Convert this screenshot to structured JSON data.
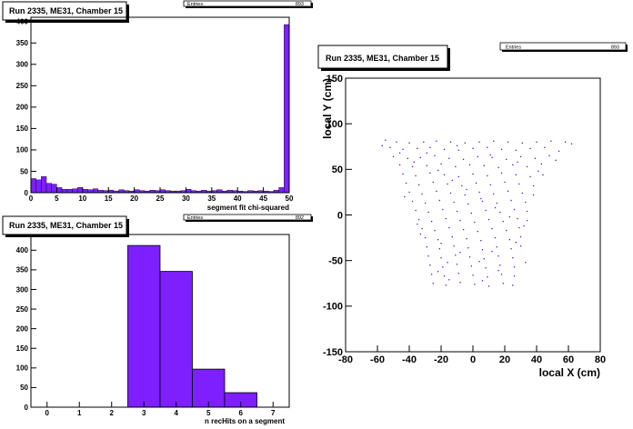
{
  "colors": {
    "fill": "#7d1fff",
    "stroke": "#000000",
    "marker": "#5a10c8"
  },
  "stats_label": "Entries",
  "chart_data": [
    {
      "type": "bar",
      "title": "Run 2335, ME31, Chamber 15",
      "entries": "893",
      "xlabel": "segment fit chi-squared",
      "ylabel": "",
      "xlim": [
        0,
        50
      ],
      "ylim": [
        0,
        410
      ],
      "xticks": [
        0,
        5,
        10,
        15,
        20,
        25,
        30,
        35,
        40,
        45,
        50
      ],
      "yticks": [
        0,
        50,
        100,
        150,
        200,
        250,
        300,
        350,
        400
      ],
      "bin_width": 1,
      "values": [
        33,
        30,
        38,
        22,
        20,
        12,
        8,
        8,
        9,
        12,
        8,
        7,
        9,
        6,
        5,
        6,
        4,
        7,
        5,
        4,
        7,
        5,
        4,
        6,
        5,
        7,
        5,
        4,
        4,
        5,
        8,
        5,
        4,
        6,
        4,
        5,
        7,
        4,
        6,
        5,
        4,
        3,
        5,
        4,
        5,
        4,
        3,
        6,
        12,
        393
      ]
    },
    {
      "type": "bar",
      "title": "Run 2335, ME31, Chamber 15",
      "entries": "892",
      "xlabel": "n recHits on a segment",
      "ylabel": "",
      "xlim": [
        -0.5,
        7.5
      ],
      "ylim": [
        0,
        440
      ],
      "xticks": [
        0,
        1,
        2,
        3,
        4,
        5,
        6,
        7
      ],
      "yticks": [
        0,
        50,
        100,
        150,
        200,
        250,
        300,
        350,
        400
      ],
      "bins": [
        {
          "x": 3,
          "value": 412
        },
        {
          "x": 4,
          "value": 346
        },
        {
          "x": 5,
          "value": 97
        },
        {
          "x": 6,
          "value": 37
        }
      ]
    },
    {
      "type": "scatter",
      "title": "Run 2335, ME31, Chamber 15",
      "entries": "893",
      "xlabel": "local X (cm)",
      "ylabel": "local Y (cm)",
      "xlim": [
        -80,
        80
      ],
      "ylim": [
        -150,
        150
      ],
      "xticks": [
        -80,
        -60,
        -40,
        -20,
        0,
        20,
        40,
        60,
        80
      ],
      "yticks": [
        -150,
        -100,
        -50,
        0,
        50,
        100,
        150
      ],
      "points": [
        [
          -55,
          82
        ],
        [
          -48,
          80
        ],
        [
          -40,
          79
        ],
        [
          -31,
          80
        ],
        [
          -23,
          81
        ],
        [
          -14,
          80
        ],
        [
          -5,
          79
        ],
        [
          4,
          80
        ],
        [
          13,
          81
        ],
        [
          22,
          80
        ],
        [
          31,
          79
        ],
        [
          40,
          80
        ],
        [
          49,
          81
        ],
        [
          58,
          80
        ],
        [
          -52,
          74
        ],
        [
          -44,
          72
        ],
        [
          -35,
          73
        ],
        [
          -27,
          74
        ],
        [
          -18,
          72
        ],
        [
          -9,
          71
        ],
        [
          0,
          73
        ],
        [
          9,
          74
        ],
        [
          18,
          72
        ],
        [
          27,
          71
        ],
        [
          36,
          73
        ],
        [
          45,
          74
        ],
        [
          54,
          70
        ],
        [
          -50,
          64
        ],
        [
          -41,
          62
        ],
        [
          -33,
          63
        ],
        [
          -24,
          65
        ],
        [
          -15,
          62
        ],
        [
          -6,
          61
        ],
        [
          3,
          64
        ],
        [
          12,
          63
        ],
        [
          21,
          61
        ],
        [
          30,
          64
        ],
        [
          39,
          62
        ],
        [
          48,
          65
        ],
        [
          -46,
          55
        ],
        [
          -38,
          53
        ],
        [
          -29,
          54
        ],
        [
          -20,
          56
        ],
        [
          -11,
          53
        ],
        [
          -2,
          55
        ],
        [
          7,
          54
        ],
        [
          16,
          52
        ],
        [
          25,
          55
        ],
        [
          34,
          53
        ],
        [
          43,
          56
        ],
        [
          -44,
          45
        ],
        [
          -36,
          43
        ],
        [
          -27,
          46
        ],
        [
          -18,
          44
        ],
        [
          -9,
          42
        ],
        [
          0,
          45
        ],
        [
          9,
          43
        ],
        [
          18,
          46
        ],
        [
          27,
          44
        ],
        [
          36,
          42
        ],
        [
          44,
          44
        ],
        [
          -42,
          35
        ],
        [
          -34,
          33
        ],
        [
          -25,
          36
        ],
        [
          -16,
          34
        ],
        [
          -7,
          32
        ],
        [
          2,
          35
        ],
        [
          11,
          33
        ],
        [
          20,
          36
        ],
        [
          29,
          34
        ],
        [
          38,
          32
        ],
        [
          -40,
          25
        ],
        [
          -32,
          23
        ],
        [
          -23,
          26
        ],
        [
          -14,
          24
        ],
        [
          -5,
          22
        ],
        [
          4,
          25
        ],
        [
          13,
          23
        ],
        [
          22,
          26
        ],
        [
          31,
          24
        ],
        [
          38,
          22
        ],
        [
          -38,
          15
        ],
        [
          -30,
          13
        ],
        [
          -21,
          16
        ],
        [
          -12,
          14
        ],
        [
          -3,
          12
        ],
        [
          6,
          15
        ],
        [
          15,
          13
        ],
        [
          24,
          16
        ],
        [
          33,
          14
        ],
        [
          -36,
          5
        ],
        [
          -28,
          3
        ],
        [
          -19,
          6
        ],
        [
          -10,
          4
        ],
        [
          -1,
          2
        ],
        [
          8,
          5
        ],
        [
          17,
          3
        ],
        [
          26,
          6
        ],
        [
          34,
          4
        ],
        [
          -34,
          -5
        ],
        [
          -26,
          -7
        ],
        [
          -17,
          -4
        ],
        [
          -8,
          -6
        ],
        [
          1,
          -8
        ],
        [
          10,
          -5
        ],
        [
          19,
          -7
        ],
        [
          28,
          -4
        ],
        [
          34,
          -6
        ],
        [
          -32,
          -15
        ],
        [
          -24,
          -17
        ],
        [
          -15,
          -14
        ],
        [
          -6,
          -16
        ],
        [
          3,
          -18
        ],
        [
          12,
          -15
        ],
        [
          21,
          -17
        ],
        [
          29,
          -14
        ],
        [
          -30,
          -25
        ],
        [
          -22,
          -27
        ],
        [
          -13,
          -24
        ],
        [
          -4,
          -26
        ],
        [
          5,
          -28
        ],
        [
          14,
          -25
        ],
        [
          23,
          -27
        ],
        [
          30,
          -24
        ],
        [
          -29,
          -35
        ],
        [
          -21,
          -37
        ],
        [
          -12,
          -34
        ],
        [
          -3,
          -36
        ],
        [
          6,
          -38
        ],
        [
          15,
          -35
        ],
        [
          24,
          -37
        ],
        [
          30,
          -34
        ],
        [
          -28,
          -45
        ],
        [
          -20,
          -47
        ],
        [
          -11,
          -44
        ],
        [
          -2,
          -46
        ],
        [
          7,
          -48
        ],
        [
          16,
          -45
        ],
        [
          25,
          -47
        ],
        [
          -27,
          -55
        ],
        [
          -19,
          -57
        ],
        [
          -10,
          -54
        ],
        [
          -1,
          -56
        ],
        [
          8,
          -58
        ],
        [
          17,
          -55
        ],
        [
          26,
          -57
        ],
        [
          -26,
          -65
        ],
        [
          -18,
          -67
        ],
        [
          -9,
          -64
        ],
        [
          0,
          -66
        ],
        [
          9,
          -68
        ],
        [
          18,
          -65
        ],
        [
          26,
          -67
        ],
        [
          -25,
          -75
        ],
        [
          -17,
          -77
        ],
        [
          -8,
          -74
        ],
        [
          1,
          -76
        ],
        [
          10,
          -78
        ],
        [
          19,
          -75
        ],
        [
          25,
          -77
        ],
        [
          -57,
          76
        ],
        [
          -46,
          68
        ],
        [
          -37,
          58
        ],
        [
          -22,
          49
        ],
        [
          -13,
          38
        ],
        [
          -4,
          28
        ],
        [
          5,
          18
        ],
        [
          14,
          8
        ],
        [
          23,
          -2
        ],
        [
          32,
          -12
        ],
        [
          -33,
          -21
        ],
        [
          -20,
          -31
        ],
        [
          -8,
          -41
        ],
        [
          4,
          -51
        ],
        [
          16,
          -61
        ],
        [
          -15,
          -71
        ],
        [
          6,
          -72
        ],
        [
          62,
          78
        ],
        [
          52,
          60
        ],
        [
          41,
          48
        ],
        [
          -29,
          68
        ],
        [
          -10,
          76
        ],
        [
          11,
          66
        ],
        [
          28,
          58
        ],
        [
          -43,
          20
        ],
        [
          -35,
          -10
        ],
        [
          -16,
          -52
        ],
        [
          12,
          -40
        ],
        [
          27,
          -30
        ],
        [
          33,
          -52
        ],
        [
          -22,
          -62
        ]
      ]
    }
  ]
}
